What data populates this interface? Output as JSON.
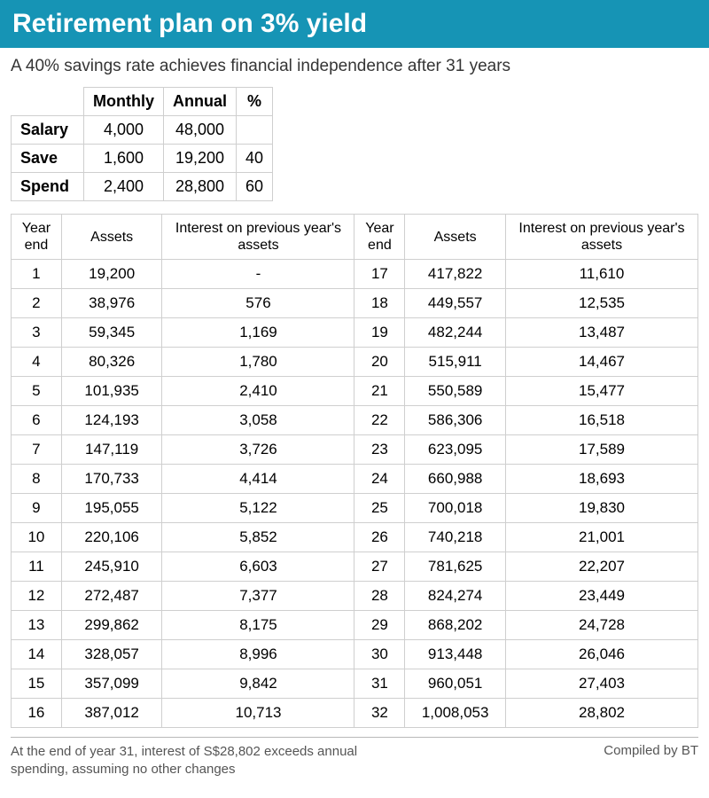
{
  "title": "Retirement plan on 3% yield",
  "subtitle": "A 40% savings rate achieves financial independence after 31 years",
  "summary": {
    "headers": {
      "monthly": "Monthly",
      "annual": "Annual",
      "pct": "%"
    },
    "rows": [
      {
        "label": "Salary",
        "monthly": "4,000",
        "annual": "48,000",
        "pct": ""
      },
      {
        "label": "Save",
        "monthly": "1,600",
        "annual": "19,200",
        "pct": "40"
      },
      {
        "label": "Spend",
        "monthly": "2,400",
        "annual": "28,800",
        "pct": "60"
      }
    ]
  },
  "yearly": {
    "headers": {
      "year": "Year end",
      "assets": "Assets",
      "interest": "Interest on previous year's assets"
    },
    "left": [
      {
        "year": "1",
        "assets": "19,200",
        "interest": "-"
      },
      {
        "year": "2",
        "assets": "38,976",
        "interest": "576"
      },
      {
        "year": "3",
        "assets": "59,345",
        "interest": "1,169"
      },
      {
        "year": "4",
        "assets": "80,326",
        "interest": "1,780"
      },
      {
        "year": "5",
        "assets": "101,935",
        "interest": "2,410"
      },
      {
        "year": "6",
        "assets": "124,193",
        "interest": "3,058"
      },
      {
        "year": "7",
        "assets": "147,119",
        "interest": "3,726"
      },
      {
        "year": "8",
        "assets": "170,733",
        "interest": "4,414"
      },
      {
        "year": "9",
        "assets": "195,055",
        "interest": "5,122"
      },
      {
        "year": "10",
        "assets": "220,106",
        "interest": "5,852"
      },
      {
        "year": "11",
        "assets": "245,910",
        "interest": "6,603"
      },
      {
        "year": "12",
        "assets": "272,487",
        "interest": "7,377"
      },
      {
        "year": "13",
        "assets": "299,862",
        "interest": "8,175"
      },
      {
        "year": "14",
        "assets": "328,057",
        "interest": "8,996"
      },
      {
        "year": "15",
        "assets": "357,099",
        "interest": "9,842"
      },
      {
        "year": "16",
        "assets": "387,012",
        "interest": "10,713"
      }
    ],
    "right": [
      {
        "year": "17",
        "assets": "417,822",
        "interest": "11,610"
      },
      {
        "year": "18",
        "assets": "449,557",
        "interest": "12,535"
      },
      {
        "year": "19",
        "assets": "482,244",
        "interest": "13,487"
      },
      {
        "year": "20",
        "assets": "515,911",
        "interest": "14,467"
      },
      {
        "year": "21",
        "assets": "550,589",
        "interest": "15,477"
      },
      {
        "year": "22",
        "assets": "586,306",
        "interest": "16,518"
      },
      {
        "year": "23",
        "assets": "623,095",
        "interest": "17,589"
      },
      {
        "year": "24",
        "assets": "660,988",
        "interest": "18,693"
      },
      {
        "year": "25",
        "assets": "700,018",
        "interest": "19,830"
      },
      {
        "year": "26",
        "assets": "740,218",
        "interest": "21,001"
      },
      {
        "year": "27",
        "assets": "781,625",
        "interest": "22,207"
      },
      {
        "year": "28",
        "assets": "824,274",
        "interest": "23,449"
      },
      {
        "year": "29",
        "assets": "868,202",
        "interest": "24,728"
      },
      {
        "year": "30",
        "assets": "913,448",
        "interest": "26,046"
      },
      {
        "year": "31",
        "assets": "960,051",
        "interest": "27,403"
      },
      {
        "year": "32",
        "assets": "1,008,053",
        "interest": "28,802"
      }
    ]
  },
  "footnote": "At the end of year 31, interest of S$28,802 exceeds annual spending, assuming no other changes",
  "credit": "Compiled by BT",
  "style": {
    "title_bg": "#1694b5",
    "title_color": "#ffffff",
    "border_color": "#cfcfcf",
    "text_color": "#000000",
    "muted_color": "#555555",
    "background": "#ffffff",
    "title_fontsize": 30,
    "subtitle_fontsize": 19,
    "body_fontsize": 17,
    "foot_fontsize": 15
  }
}
